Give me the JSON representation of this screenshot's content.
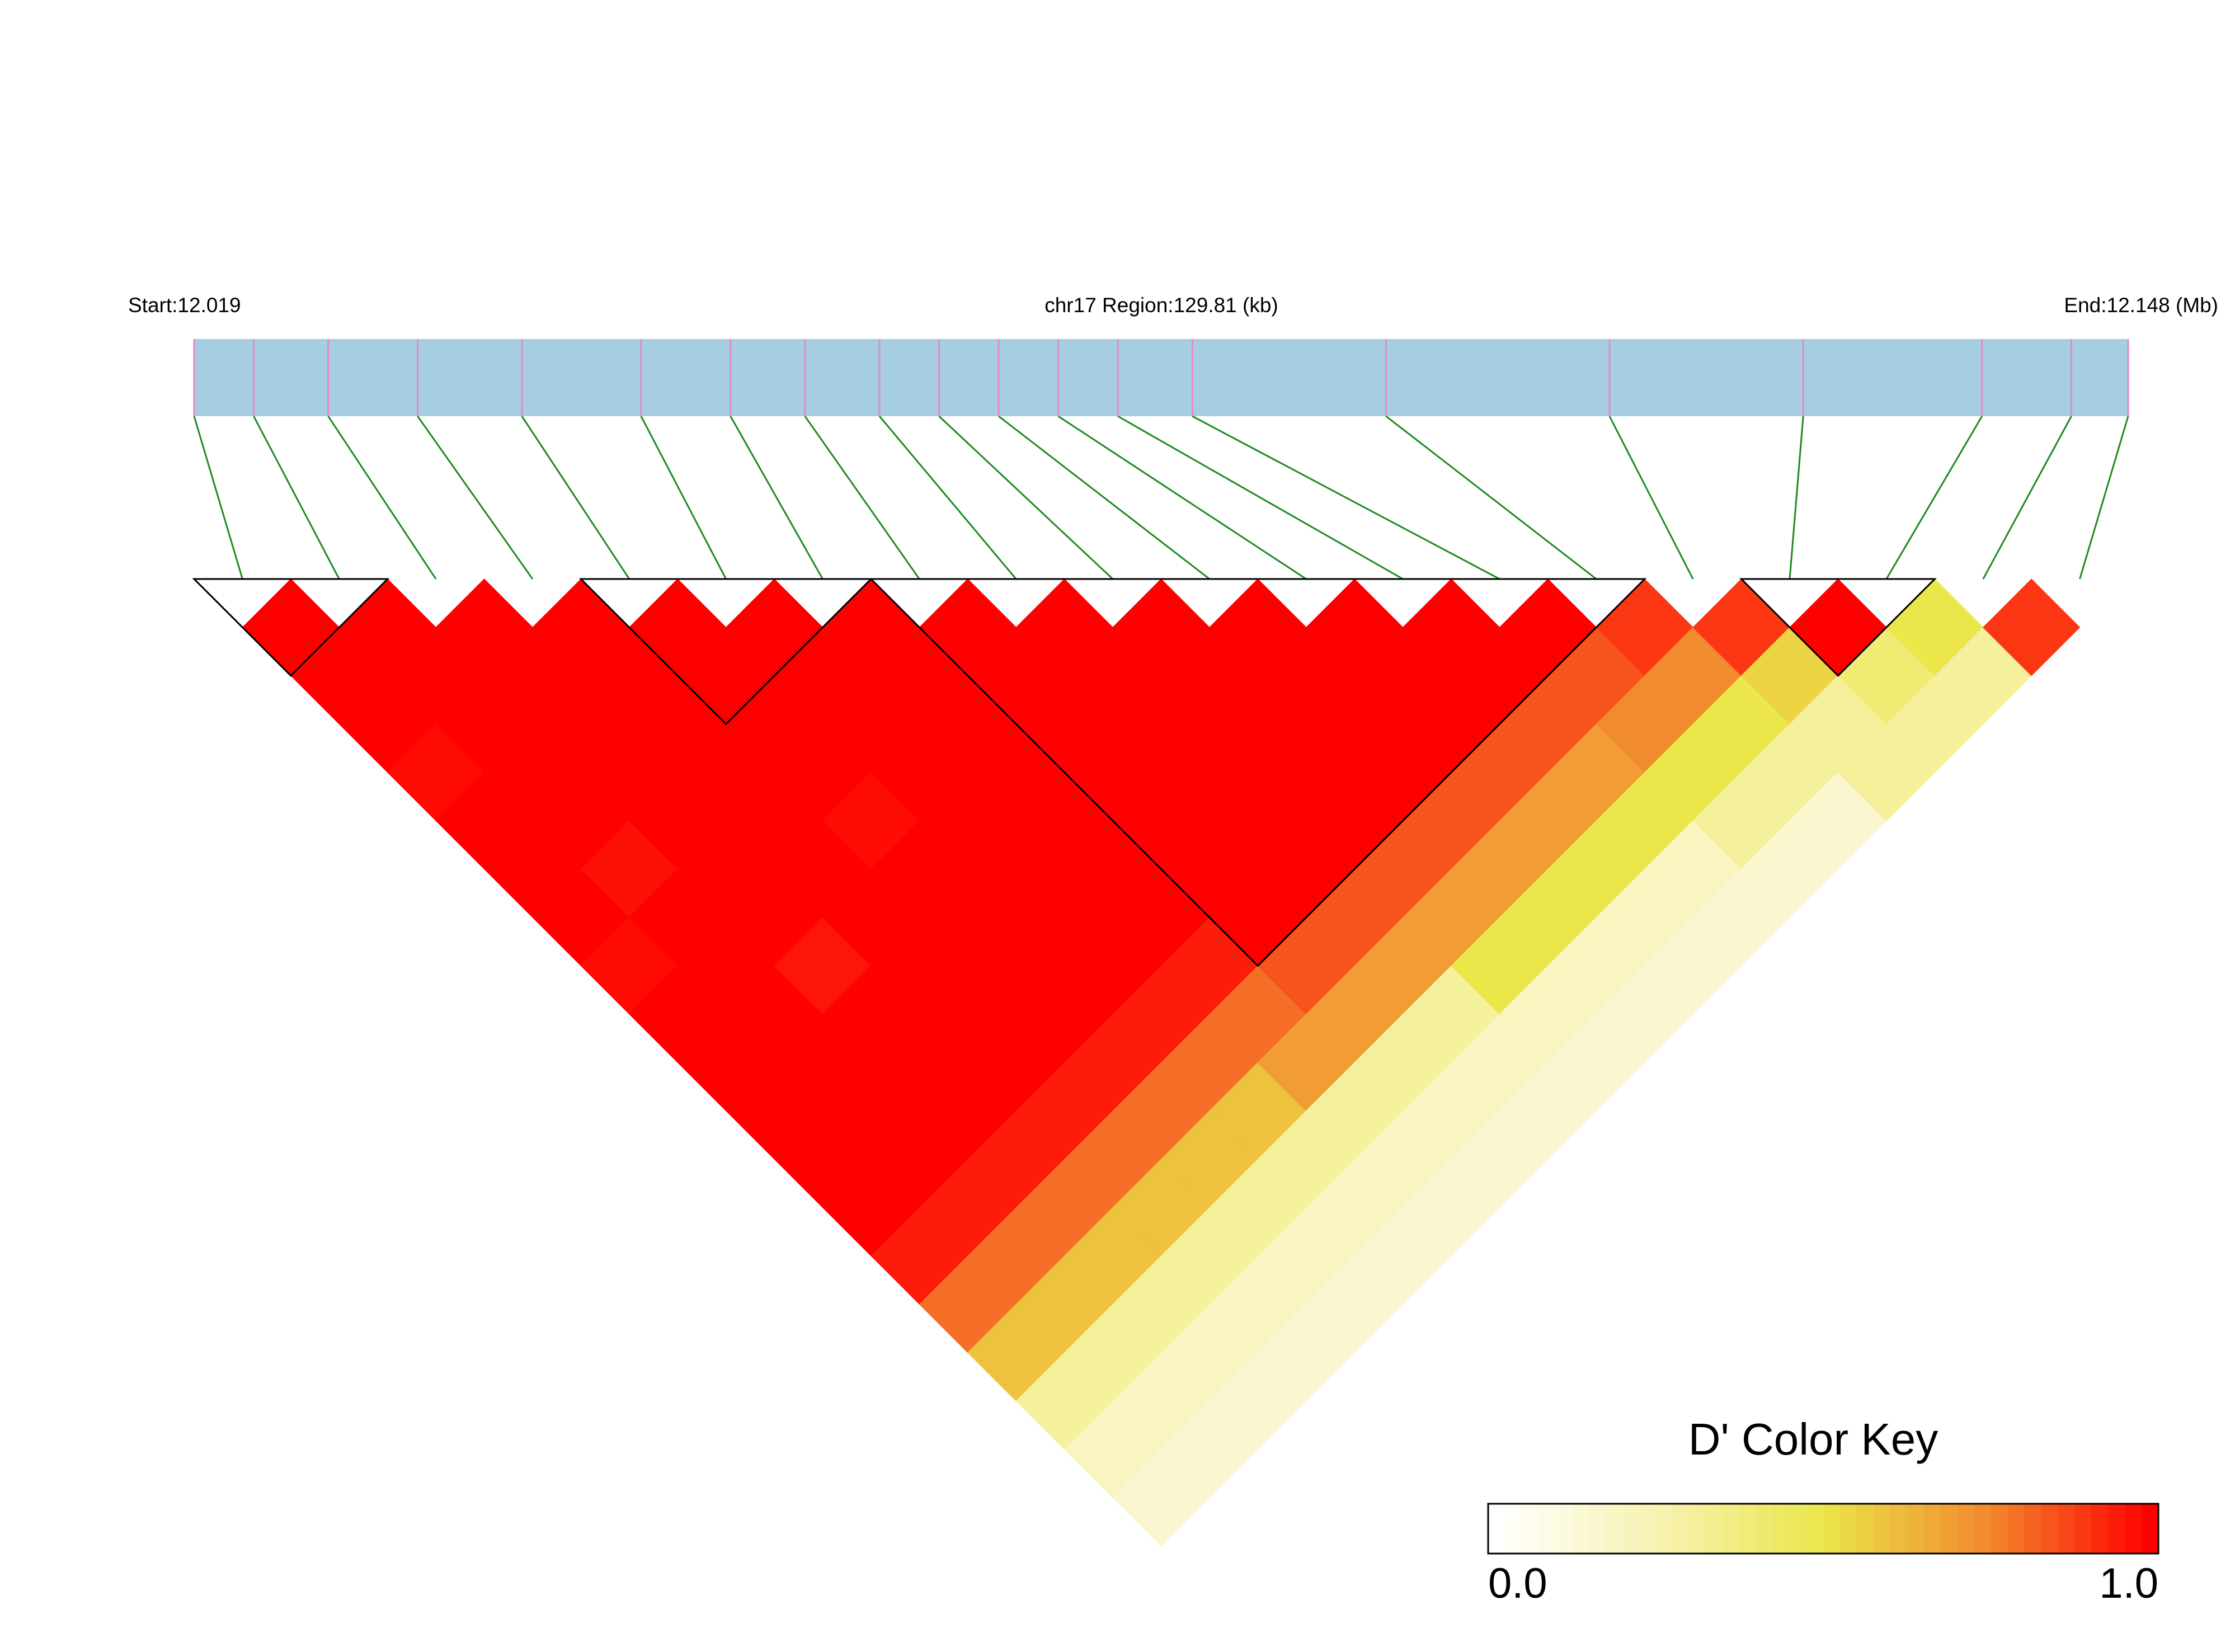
{
  "chart_data": {
    "type": "ld_heatmap",
    "start_label": "Start:12.019",
    "region_label": "chr17 Region:129.81 (kb)",
    "end_label": "End:12.148 (Mb)",
    "xlim": [
      0,
      129.81
    ],
    "snp_positions": [
      0,
      4,
      9,
      15,
      22,
      30,
      36,
      41,
      46,
      50,
      54,
      58,
      62,
      67,
      80,
      95,
      108,
      120,
      126,
      129.81
    ],
    "matrix": [
      [
        1,
        1,
        1,
        0.98,
        1,
        1,
        1,
        0.98,
        1,
        1,
        1,
        1,
        1,
        0.95,
        0.8,
        0.6,
        0.3,
        0.2,
        0.15
      ],
      [
        1,
        1,
        1,
        1,
        1,
        0.97,
        1,
        1,
        1,
        1,
        1,
        1,
        0.95,
        0.8,
        0.6,
        0.3,
        0.2,
        0.15
      ],
      [
        1,
        1,
        1,
        1,
        1,
        1,
        1,
        0.96,
        1,
        1,
        1,
        0.95,
        0.8,
        0.6,
        0.3,
        0.2,
        0.15
      ],
      [
        1,
        1,
        1,
        1,
        1,
        1,
        1,
        1,
        1,
        1,
        0.95,
        0.8,
        0.6,
        0.3,
        0.2,
        0.15
      ],
      [
        1,
        1,
        1,
        1,
        0.98,
        1,
        1,
        1,
        1,
        0.95,
        0.8,
        0.6,
        0.3,
        0.2,
        0.15
      ],
      [
        1,
        1,
        1,
        1,
        1,
        1,
        1,
        1,
        0.95,
        0.8,
        0.6,
        0.3,
        0.2,
        0.15
      ],
      [
        1,
        1,
        1,
        1,
        1,
        1,
        1,
        0.95,
        0.8,
        0.7,
        0.3,
        0.2,
        0.15
      ],
      [
        1,
        1,
        1,
        1,
        1,
        1,
        1,
        0.85,
        0.7,
        0.3,
        0.2,
        0.15
      ],
      [
        1,
        1,
        1,
        1,
        1,
        1,
        0.85,
        0.7,
        0.3,
        0.2,
        0.15
      ],
      [
        1,
        1,
        1,
        1,
        1,
        0.85,
        0.7,
        0.5,
        0.2,
        0.15
      ],
      [
        1,
        1,
        1,
        1,
        0.85,
        0.7,
        0.5,
        0.2,
        0.15
      ],
      [
        1,
        1,
        1,
        0.85,
        0.7,
        0.5,
        0.2,
        0.15
      ],
      [
        1,
        1,
        0.85,
        0.7,
        0.5,
        0.2,
        0.15
      ],
      [
        1,
        0.85,
        0.75,
        0.5,
        0.3,
        0.15
      ],
      [
        0.9,
        0.75,
        0.5,
        0.3,
        0.15
      ],
      [
        0.9,
        0.55,
        0.3,
        0.3
      ],
      [
        1,
        0.4,
        0.3
      ],
      [
        0.5,
        0.3
      ],
      [
        0.9
      ]
    ],
    "blocks": [
      [
        0,
        1
      ],
      [
        4,
        6
      ],
      [
        7,
        14
      ],
      [
        16,
        17
      ]
    ],
    "colorscale": [
      "#ffffff",
      "#f7f2b0",
      "#ebe64a",
      "#f28a2e",
      "#ff0000"
    ],
    "key_title": "D' Color Key",
    "key_ticks": [
      {
        "value": 0,
        "label": "0.0"
      },
      {
        "value": 1,
        "label": "1.0"
      }
    ],
    "bar_color": "#a6cee0",
    "snp_color": "#e28ac6",
    "connector_color": "#1f8a1f",
    "block_color": "#000000"
  }
}
